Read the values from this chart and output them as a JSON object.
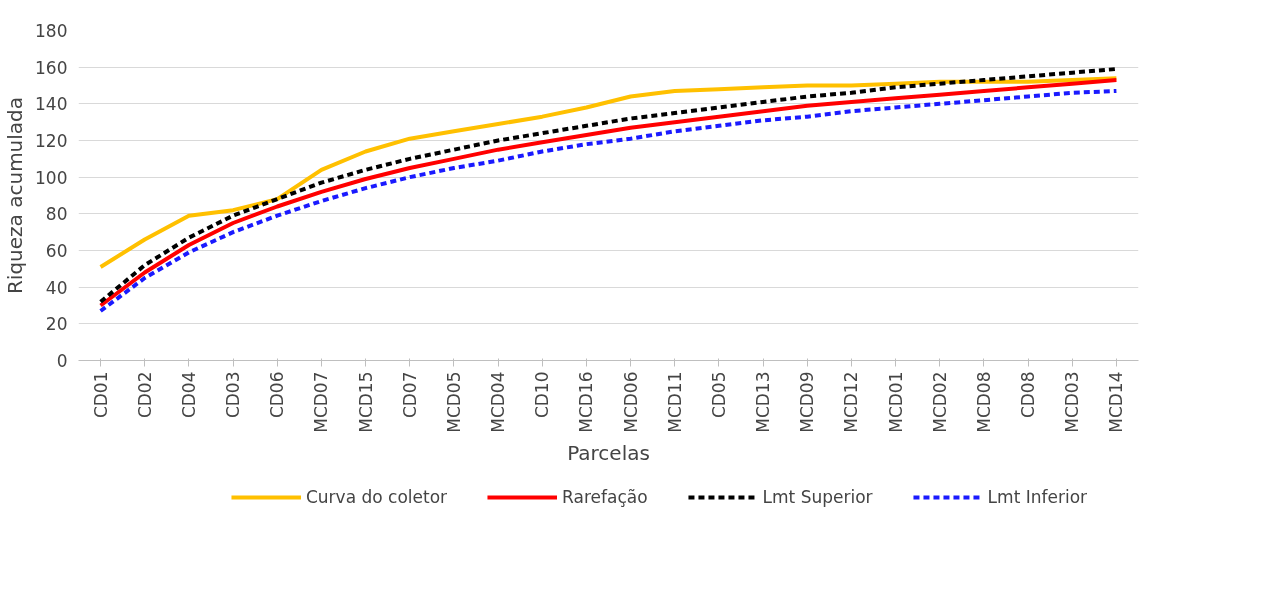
{
  "chart_data": {
    "type": "line",
    "xlabel": "Parcelas",
    "ylabel": "Riqueza acumulada",
    "categories": [
      "CD01",
      "CD02",
      "CD04",
      "CD03",
      "CD06",
      "MCD07",
      "MCD15",
      "CD07",
      "MCD05",
      "MCD04",
      "CD10",
      "MCD16",
      "MCD06",
      "MCD11",
      "CD05",
      "MCD13",
      "MCD09",
      "MCD12",
      "MCD01",
      "MCD02",
      "MCD08",
      "CD08",
      "MCD03",
      "MCD14"
    ],
    "series": [
      {
        "name": "Curva do coletor",
        "color": "#ffc000",
        "line_style": "solid",
        "values": [
          51,
          66,
          79,
          82,
          88,
          104,
          114,
          121,
          125,
          129,
          133,
          138,
          144,
          147,
          148,
          149,
          150,
          150,
          151,
          152,
          152,
          152,
          153,
          154
        ]
      },
      {
        "name": "Rarefação",
        "color": "#ff0000",
        "line_style": "solid",
        "values": [
          30,
          48,
          63,
          75,
          84,
          92,
          99,
          105,
          110,
          115,
          119,
          123,
          127,
          130,
          133,
          136,
          139,
          141,
          143,
          145,
          147,
          149,
          151,
          153
        ]
      },
      {
        "name": "Lmt Superior",
        "color": "#000000",
        "line_style": "dashed",
        "values": [
          32,
          52,
          67,
          79,
          88,
          97,
          104,
          110,
          115,
          120,
          124,
          128,
          132,
          135,
          138,
          141,
          144,
          146,
          149,
          151,
          153,
          155,
          157,
          159
        ]
      },
      {
        "name": "Lmt Inferior",
        "color": "#1a1aff",
        "line_style": "dashed",
        "values": [
          27,
          45,
          59,
          70,
          79,
          87,
          94,
          100,
          105,
          109,
          114,
          118,
          121,
          125,
          128,
          131,
          133,
          136,
          138,
          140,
          142,
          144,
          146,
          147
        ]
      }
    ],
    "ylim": [
      0,
      180
    ],
    "yticks": [
      0,
      20,
      40,
      60,
      80,
      100,
      120,
      140,
      160,
      180
    ],
    "grid": "y",
    "legend": "bottom"
  }
}
